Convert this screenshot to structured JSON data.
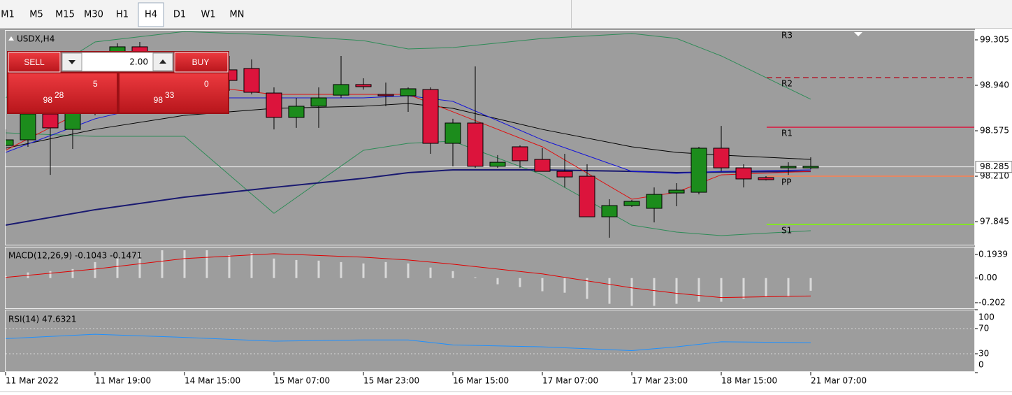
{
  "toolbar": {
    "timeframes": [
      "M1",
      "M5",
      "M15",
      "M30",
      "H1",
      "H4",
      "D1",
      "W1",
      "MN"
    ],
    "active_index": 5
  },
  "chart": {
    "title": "USDX,H4",
    "ylim": [
      97.66,
      99.378
    ],
    "yticks": [
      99.305,
      {
        "value": 98.94,
        "label": "98.940"
      },
      98.575,
      {
        "value": 98.21,
        "label": "98.210"
      },
      97.845
    ],
    "current_price": 98.285,
    "up_color": "#1c8c1c",
    "down_color": "#dc143c",
    "candles": {
      "open": [
        98.457,
        98.502,
        98.71,
        98.586,
        98.727,
        99.007,
        99.249,
        99.035,
        98.895,
        98.783,
        99.064,
        99.075,
        98.878,
        98.682,
        98.772,
        98.861,
        98.946,
        98.867,
        98.856,
        98.906,
        98.474,
        98.637,
        98.289,
        98.446,
        98.345,
        98.249,
        98.21,
        97.884,
        97.974,
        97.952,
        98.075,
        98.081,
        98.435,
        98.277,
        98.199,
        98.277,
        98.277
      ],
      "high": [
        98.586,
        98.755,
        98.783,
        98.783,
        99.064,
        99.277,
        99.288,
        99.075,
        98.951,
        99.092,
        99.176,
        99.148,
        98.923,
        98.839,
        98.923,
        99.176,
        98.996,
        98.962,
        98.923,
        98.923,
        98.671,
        99.092,
        98.379,
        98.457,
        98.435,
        98.39,
        98.306,
        98.025,
        98.019,
        98.12,
        98.154,
        98.446,
        98.614,
        98.306,
        98.21,
        98.322,
        98.362
      ],
      "low": [
        98.418,
        98.446,
        98.221,
        98.429,
        98.699,
        98.979,
        99.007,
        98.867,
        98.783,
        98.755,
        98.895,
        98.867,
        98.586,
        98.598,
        98.598,
        98.839,
        98.906,
        98.772,
        98.727,
        98.39,
        98.289,
        98.277,
        98.277,
        98.277,
        98.249,
        98.12,
        97.884,
        97.716,
        97.963,
        97.839,
        97.969,
        98.064,
        98.249,
        98.12,
        98.176,
        98.221,
        98.266
      ],
      "close": [
        98.502,
        98.71,
        98.598,
        98.727,
        99.007,
        99.249,
        99.035,
        98.895,
        98.811,
        99.035,
        98.979,
        98.884,
        98.682,
        98.772,
        98.839,
        98.946,
        98.929,
        98.856,
        98.912,
        98.474,
        98.637,
        98.289,
        98.322,
        98.334,
        98.249,
        98.204,
        97.884,
        97.974,
        98.008,
        98.064,
        98.098,
        98.435,
        98.277,
        98.188,
        98.182,
        98.289,
        98.289
      ]
    },
    "line_index": [
      0,
      4,
      8,
      12,
      16,
      18,
      20,
      24,
      28,
      30,
      32,
      36
    ],
    "lines": [
      {
        "color": "#2e8b57",
        "width": 1,
        "values": [
          98.839,
          99.288,
          99.372,
          99.344,
          99.299,
          99.232,
          99.243,
          99.316,
          99.356,
          99.316,
          99.176,
          98.828
        ]
      },
      {
        "color": "#2e8b57",
        "width": 1,
        "values": [
          98.558,
          98.53,
          98.53,
          97.912,
          98.418,
          98.474,
          98.491,
          98.221,
          97.817,
          97.761,
          97.733,
          97.772
        ]
      },
      {
        "color": "#191970",
        "width": 2,
        "values": [
          97.817,
          97.941,
          98.042,
          98.12,
          98.193,
          98.238,
          98.261,
          98.261,
          98.249,
          98.238,
          98.244,
          98.249
        ]
      },
      {
        "color": "#000000",
        "width": 1,
        "values": [
          98.435,
          98.586,
          98.699,
          98.755,
          98.772,
          98.794,
          98.755,
          98.586,
          98.446,
          98.401,
          98.379,
          98.345
        ]
      },
      {
        "color": "#1414d8",
        "width": 1,
        "values": [
          98.401,
          98.671,
          98.839,
          98.839,
          98.839,
          98.856,
          98.811,
          98.502,
          98.249,
          98.233,
          98.249,
          98.261
        ]
      },
      {
        "color": "#e01010",
        "width": 1,
        "values": [
          98.418,
          98.783,
          98.951,
          98.867,
          98.867,
          98.867,
          98.727,
          98.446,
          98.025,
          98.081,
          98.221,
          98.249
        ]
      }
    ],
    "pivots": [
      {
        "label": "R3",
        "value": 99.389,
        "color": "#b01e2e",
        "dash": false
      },
      {
        "label": "R2",
        "value": 99.002,
        "color": "#b01e2e",
        "dash": true
      },
      {
        "label": "R1",
        "value": 98.603,
        "color": "#dc143c",
        "dash": false
      },
      {
        "label": "PP",
        "value": 98.21,
        "color": "#ff7f50",
        "dash": false
      },
      {
        "label": "S1",
        "value": 97.823,
        "color": "#7cfc00",
        "dash": false
      }
    ],
    "time_labels": [
      {
        "index": 0,
        "label": "11 Mar 2022"
      },
      {
        "index": 4,
        "label": "11 Mar 19:00"
      },
      {
        "index": 8,
        "label": "14 Mar 15:00"
      },
      {
        "index": 12,
        "label": "15 Mar 07:00"
      },
      {
        "index": 16,
        "label": "15 Mar 23:00"
      },
      {
        "index": 20,
        "label": "16 Mar 15:00"
      },
      {
        "index": 24,
        "label": "17 Mar 07:00"
      },
      {
        "index": 28,
        "label": "17 Mar 23:00"
      },
      {
        "index": 32,
        "label": "18 Mar 15:00"
      },
      {
        "index": 36,
        "label": "21 Mar 07:00"
      }
    ]
  },
  "trade_panel": {
    "sell": "SELL",
    "buy": "BUY",
    "volume": "2.00",
    "bid": {
      "big": "98",
      "main": "28",
      "small": "5"
    },
    "ask": {
      "big": "98",
      "main": "33",
      "small": "0"
    }
  },
  "macd": {
    "label": "MACD(12,26,9) -0.1043 -0.1471",
    "ylim": [
      -0.248,
      0.245
    ],
    "yticks": [
      0.1939,
      {
        "value": 0,
        "label": "0.00"
      },
      -0.202
    ],
    "histogram_color": "#d9d9d9",
    "signal_color": "#e00000",
    "histogram": [
      0.017,
      0.046,
      0.057,
      0.074,
      0.131,
      0.16,
      0.205,
      0.228,
      0.228,
      0.228,
      0.188,
      0.205,
      0.16,
      0.148,
      0.143,
      0.131,
      0.12,
      0.131,
      0.12,
      0.086,
      0.057,
      0.006,
      -0.051,
      -0.074,
      -0.108,
      -0.12,
      -0.171,
      -0.211,
      -0.228,
      -0.228,
      -0.211,
      -0.194,
      -0.194,
      -0.171,
      -0.154,
      -0.154,
      -0.104
    ],
    "signal": [
      0.006,
      0.074,
      0.16,
      0.2,
      0.171,
      0.148,
      0.114,
      0.034,
      -0.08,
      -0.125,
      -0.16,
      -0.147
    ]
  },
  "rsi": {
    "label": "RSI(14) 47.6321",
    "ylim": [
      0,
      100
    ],
    "yticks": [
      100,
      70,
      30,
      0
    ],
    "levels": [
      70,
      30
    ],
    "color": "#1e90ff",
    "values": [
      54,
      61,
      56,
      50,
      52,
      52,
      44,
      41,
      35,
      41,
      49,
      47.6321
    ]
  }
}
